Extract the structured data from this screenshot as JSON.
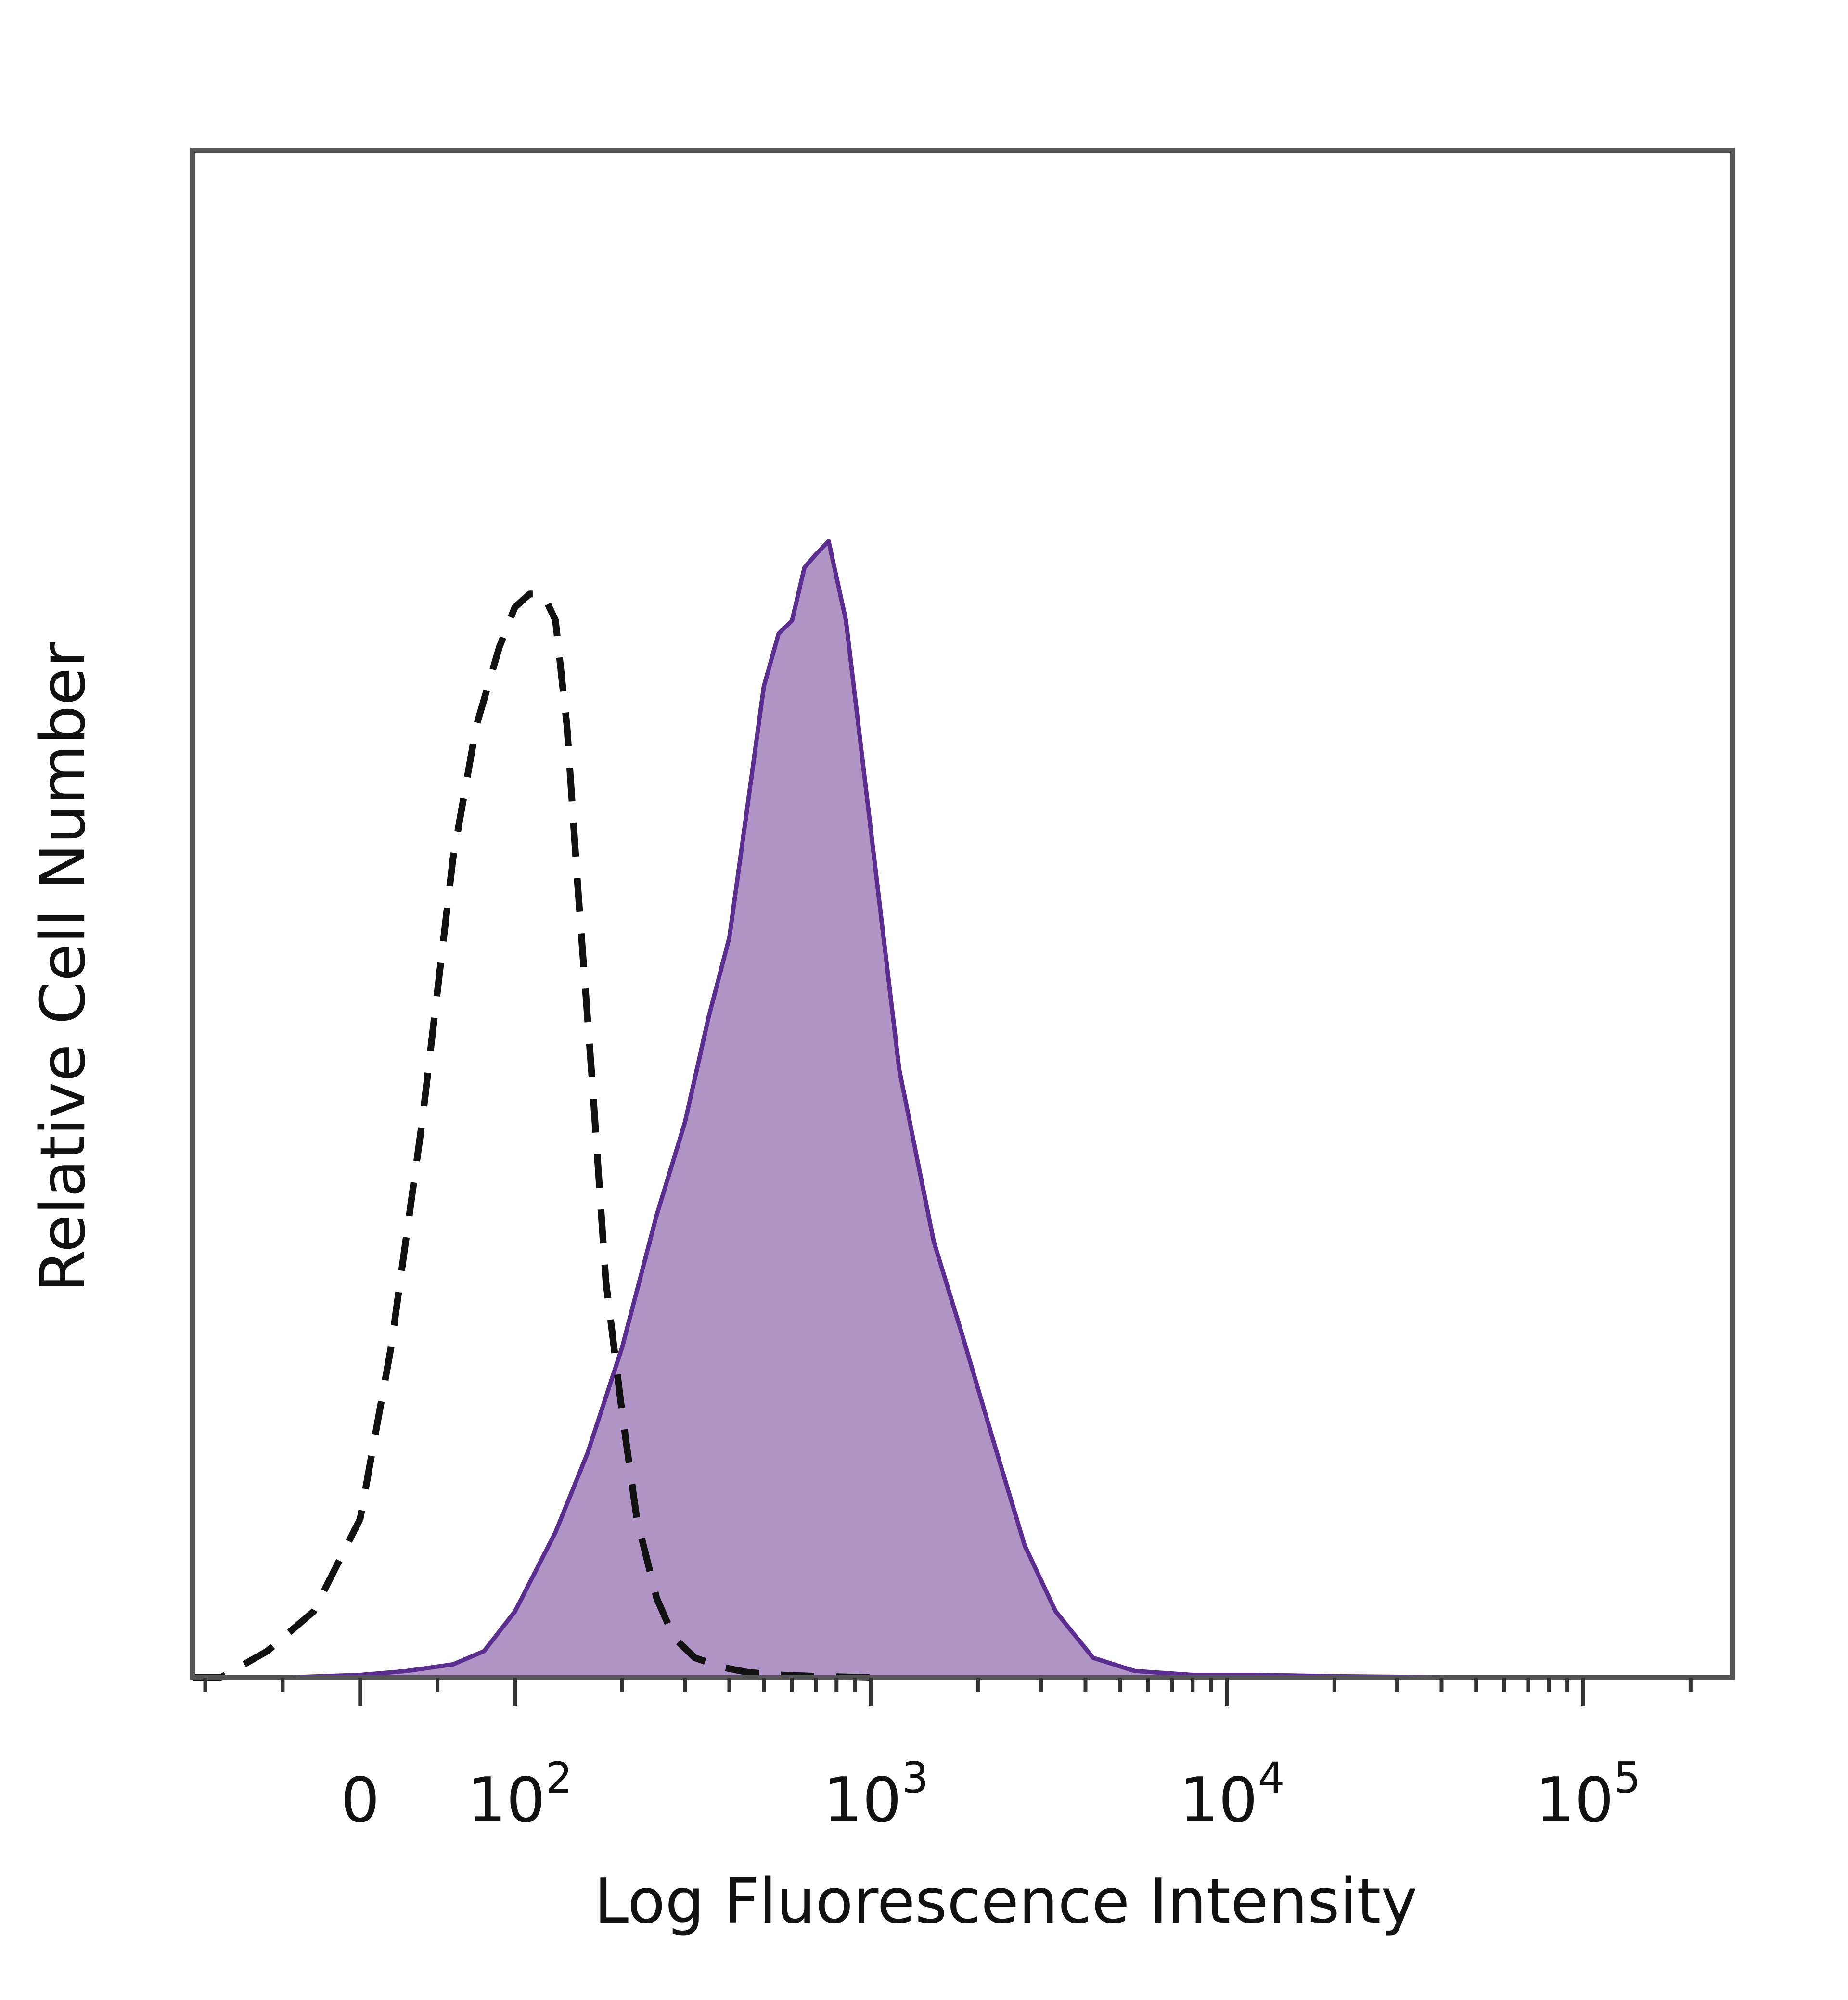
{
  "chart_data": {
    "type": "area",
    "xlabel": "Log Fluorescence Intensity",
    "ylabel": "Relative Cell Number",
    "x_scale": "biexponential (log above 10^2)",
    "x_ticks": [
      {
        "value": 0,
        "base": "0",
        "exp": ""
      },
      {
        "value": 100,
        "base": "10",
        "exp": "2"
      },
      {
        "value": 1000,
        "base": "10",
        "exp": "3"
      },
      {
        "value": 10000,
        "base": "10",
        "exp": "4"
      },
      {
        "value": 100000,
        "base": "10",
        "exp": "5"
      }
    ],
    "xlim": [
      -200,
      262144
    ],
    "ylim": [
      0,
      1
    ],
    "grid": false,
    "series": [
      {
        "style": "dashed",
        "color": "#111111",
        "fill": "none",
        "x": [
          -180,
          -130,
          -90,
          -60,
          -30,
          0,
          20,
          40,
          60,
          75,
          90,
          100,
          110,
          120,
          130,
          140,
          150,
          165,
          180,
          200,
          220,
          250,
          280,
          320,
          380,
          450,
          550,
          700,
          1000
        ],
        "y": [
          0.0,
          0.0,
          0.0,
          0.02,
          0.05,
          0.12,
          0.25,
          0.42,
          0.62,
          0.72,
          0.78,
          0.81,
          0.82,
          0.82,
          0.8,
          0.72,
          0.6,
          0.45,
          0.3,
          0.2,
          0.12,
          0.06,
          0.03,
          0.015,
          0.008,
          0.004,
          0.002,
          0.001,
          0.0
        ]
      },
      {
        "style": "solid",
        "color": "#5b2d8e",
        "fill": "#b194c6",
        "x": [
          -50,
          0,
          30,
          60,
          80,
          100,
          130,
          160,
          200,
          250,
          300,
          350,
          400,
          450,
          500,
          550,
          600,
          650,
          700,
          760,
          850,
          1000,
          1200,
          1500,
          1800,
          2200,
          2700,
          3300,
          4200,
          5500,
          8000,
          12000,
          20000,
          50000,
          100000,
          200000
        ],
        "y": [
          0.0,
          0.002,
          0.005,
          0.01,
          0.02,
          0.05,
          0.11,
          0.17,
          0.25,
          0.35,
          0.42,
          0.5,
          0.56,
          0.66,
          0.75,
          0.79,
          0.8,
          0.84,
          0.85,
          0.86,
          0.8,
          0.64,
          0.46,
          0.33,
          0.26,
          0.18,
          0.1,
          0.05,
          0.015,
          0.005,
          0.002,
          0.002,
          0.001,
          0.0,
          0.0,
          0.0
        ]
      }
    ]
  }
}
